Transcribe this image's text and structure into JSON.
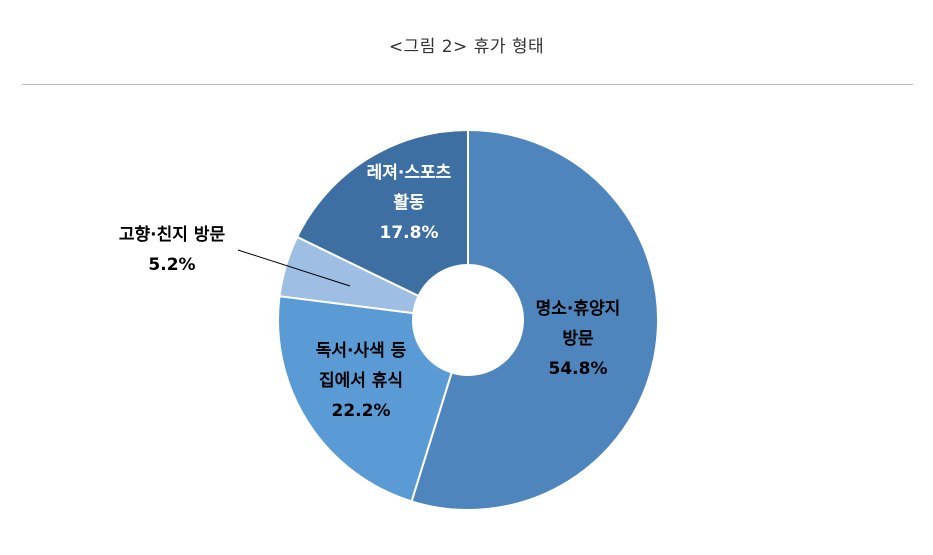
{
  "figure": {
    "title": "<그림 2> 휴가 형태"
  },
  "chart_data": {
    "type": "pie",
    "variant": "donut",
    "title": "<그림 2> 휴가 형태",
    "slices": [
      {
        "label_lines": [
          "명소·휴양지",
          "방문"
        ],
        "value_text": "54.8%",
        "value": 54.8,
        "color": "#4e85bc",
        "label_color": "#000000"
      },
      {
        "label_lines": [
          "독서·사색 등",
          "집에서 휴식"
        ],
        "value_text": "22.2%",
        "value": 22.2,
        "color": "#5b9bd5",
        "label_color": "#000000"
      },
      {
        "label_lines": [
          "고향·친지 방문"
        ],
        "value_text": "5.2%",
        "value": 5.2,
        "color": "#9fbee4",
        "label_color": "#000000"
      },
      {
        "label_lines": [
          "레져·스포츠",
          "활동"
        ],
        "value_text": "17.8%",
        "value": 17.8,
        "color": "#3e6fa3",
        "label_color": "#ffffff"
      }
    ],
    "legend": "none"
  }
}
